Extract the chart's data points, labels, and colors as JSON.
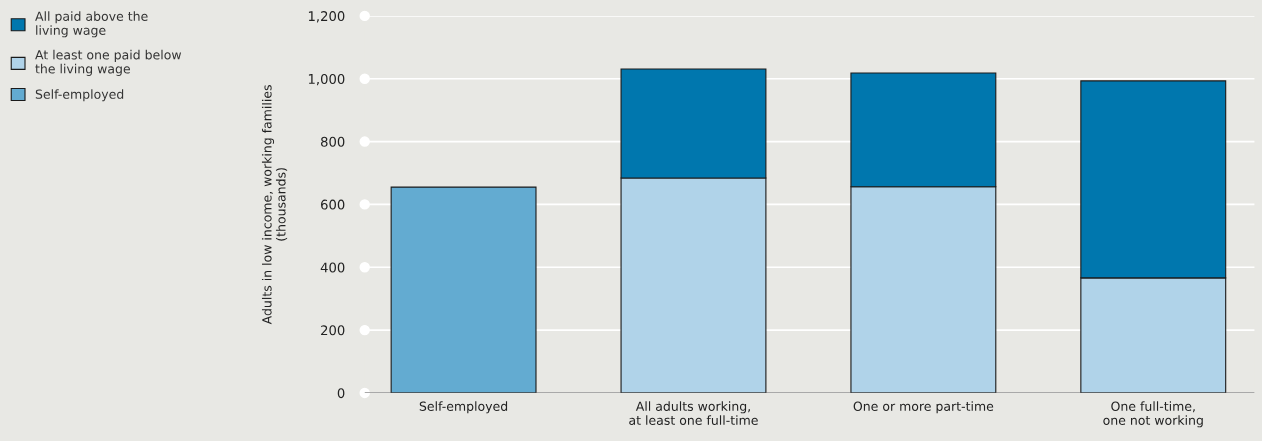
{
  "chart_data": {
    "type": "bar",
    "stacked": true,
    "ylabel": "Adults in low income, working families\n(thousands)",
    "categories": [
      "Self-employed",
      "All adults working,\nat least one full-time",
      "One or more part-time",
      "One full-time,\none not working"
    ],
    "series": [
      {
        "name": "Self-employed",
        "color": "#63abd1",
        "values": [
          655,
          null,
          null,
          null
        ]
      },
      {
        "name": "At least one paid below\nthe living wage",
        "color": "#b0d3e9",
        "values": [
          null,
          684,
          656,
          366
        ]
      },
      {
        "name": "All paid above the\nliving wage",
        "color": "#0077ae",
        "values": [
          null,
          347,
          362,
          627
        ]
      }
    ],
    "ylim": [
      0,
      1200
    ],
    "yticks": [
      0,
      200,
      400,
      600,
      800,
      {
        "value": 1000,
        "label": "1,000"
      },
      {
        "value": 1200,
        "label": "1,200"
      }
    ],
    "grid": "y",
    "legend": "top left"
  }
}
